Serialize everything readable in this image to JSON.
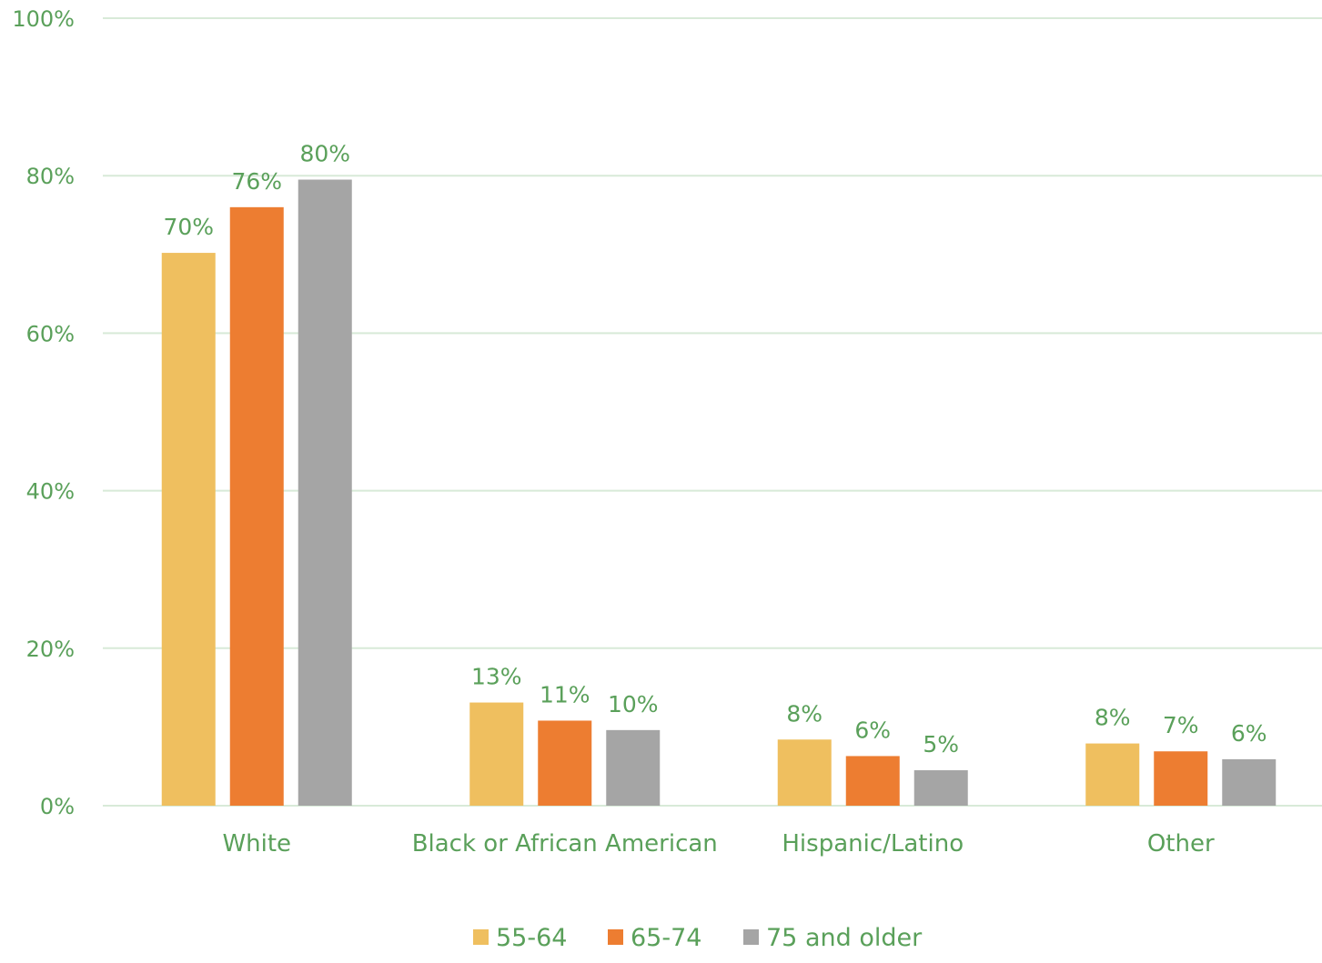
{
  "colors": {
    "text": "#5aa05a",
    "grid": "#d8ead8",
    "series": [
      "#efbf5f",
      "#ed7d31",
      "#a5a5a5"
    ]
  },
  "chart_data": {
    "type": "bar",
    "categories": [
      "White",
      "Black or African American",
      "Hispanic/Latino",
      "Other"
    ],
    "series": [
      {
        "name": "55-64",
        "values": [
          70.2,
          13.1,
          8.4,
          7.9
        ],
        "labels": [
          "70%",
          "13%",
          "8%",
          "8%"
        ]
      },
      {
        "name": "65-74",
        "values": [
          76.0,
          10.8,
          6.3,
          6.9
        ],
        "labels": [
          "76%",
          "11%",
          "6%",
          "7%"
        ]
      },
      {
        "name": "75 and older",
        "values": [
          79.5,
          9.6,
          4.5,
          5.9
        ],
        "labels": [
          "80%",
          "10%",
          "5%",
          "6%"
        ]
      }
    ],
    "y_ticks": [
      "0%",
      "20%",
      "40%",
      "60%",
      "80%",
      "100%"
    ],
    "ylim": [
      0,
      100
    ],
    "grid": true,
    "legend_position": "bottom-center",
    "title": "",
    "xlabel": "",
    "ylabel": ""
  }
}
